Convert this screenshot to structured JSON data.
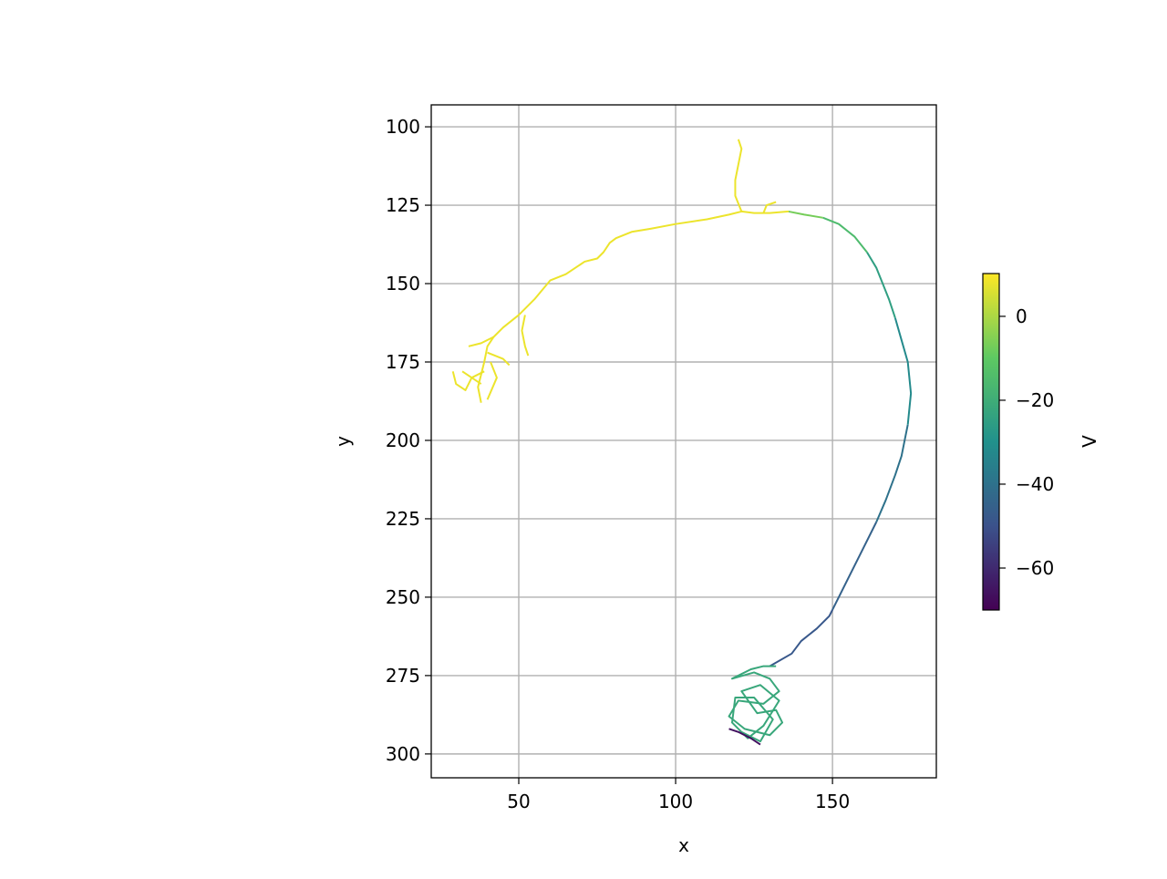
{
  "chart_data": {
    "type": "line",
    "colormap": "viridis",
    "grid": true,
    "xlabel": "x",
    "ylabel": "y",
    "colorbar_label": "V",
    "xlim": [
      22.1,
      183.1
    ],
    "ylim": [
      307.6,
      93.0
    ],
    "xticks": [
      50,
      100,
      150
    ],
    "yticks": [
      100,
      125,
      150,
      175,
      200,
      225,
      250,
      275,
      300
    ],
    "clim": [
      -70,
      10.2
    ],
    "cticks": [
      {
        "value": 0,
        "label": "0"
      },
      {
        "value": -20,
        "label": "−20"
      },
      {
        "value": -40,
        "label": "−40"
      },
      {
        "value": -60,
        "label": "−60"
      }
    ],
    "segments": [
      {
        "v": -48,
        "x": [
          130,
          137,
          140,
          145,
          149,
          150
        ],
        "y": [
          272,
          268,
          264,
          260,
          256,
          254
        ]
      },
      {
        "v": -45,
        "x": [
          150,
          153,
          157,
          160,
          164
        ],
        "y": [
          254,
          248,
          240,
          234,
          226
        ]
      },
      {
        "v": -40,
        "x": [
          164,
          167,
          170,
          172,
          173,
          174
        ],
        "y": [
          226,
          219,
          211,
          205,
          200,
          195
        ]
      },
      {
        "v": -32,
        "x": [
          174,
          175,
          174,
          172,
          170
        ],
        "y": [
          195,
          185,
          175,
          168,
          161
        ]
      },
      {
        "v": -25,
        "x": [
          170,
          168,
          166,
          164,
          161
        ],
        "y": [
          161,
          155,
          150,
          145,
          140
        ]
      },
      {
        "v": -15,
        "x": [
          161,
          157,
          152,
          147
        ],
        "y": [
          140,
          135,
          131,
          129
        ]
      },
      {
        "v": -7,
        "x": [
          147,
          141,
          136
        ],
        "y": [
          129,
          128,
          127
        ]
      },
      {
        "v": 8,
        "x": [
          136,
          130,
          125,
          121,
          117,
          110,
          100,
          92,
          86,
          81,
          79,
          77,
          75,
          71,
          65,
          60,
          55,
          50,
          45,
          42,
          40,
          39,
          38,
          37,
          38
        ],
        "y": [
          127,
          127.5,
          127.5,
          127,
          128,
          129.5,
          131,
          132.5,
          133.5,
          135.5,
          137,
          140,
          142,
          143,
          147,
          149,
          155,
          160,
          164,
          167,
          170,
          175,
          179,
          183,
          188
        ]
      },
      {
        "v": 8,
        "x": [
          121,
          119,
          119,
          120,
          121,
          120
        ],
        "y": [
          127,
          122,
          117,
          112,
          107,
          104
        ]
      },
      {
        "v": 8,
        "x": [
          128,
          129,
          132
        ],
        "y": [
          127.5,
          125,
          124
        ]
      },
      {
        "v": 8,
        "x": [
          52,
          51,
          52,
          53
        ],
        "y": [
          160,
          165,
          170,
          173
        ]
      },
      {
        "v": 8,
        "x": [
          42,
          38,
          34
        ],
        "y": [
          167,
          169,
          170
        ]
      },
      {
        "v": 8,
        "x": [
          40,
          45,
          47
        ],
        "y": [
          172,
          174,
          176
        ]
      },
      {
        "v": 8,
        "x": [
          39,
          35,
          33,
          30,
          29
        ],
        "y": [
          178,
          180,
          184,
          182,
          178
        ]
      },
      {
        "v": 8,
        "x": [
          38,
          32
        ],
        "y": [
          182,
          178
        ]
      },
      {
        "v": 8,
        "x": [
          41,
          43,
          40
        ],
        "y": [
          175,
          180,
          187
        ]
      },
      {
        "v": -22,
        "x": [
          132,
          128,
          124,
          118,
          125,
          130,
          133,
          128,
          120,
          117,
          122,
          130,
          134,
          132,
          126,
          121,
          127,
          133,
          128,
          123,
          118,
          119,
          125,
          131,
          127,
          121
        ],
        "y": [
          272,
          272,
          273,
          276,
          274,
          276,
          280,
          284,
          283,
          288,
          292,
          294,
          290,
          286,
          287,
          280,
          278,
          283,
          291,
          295,
          290,
          282,
          282,
          289,
          296,
          293
        ]
      },
      {
        "v": -66,
        "x": [
          117,
          120,
          124,
          127
        ],
        "y": [
          292,
          293,
          295,
          297
        ]
      }
    ]
  }
}
